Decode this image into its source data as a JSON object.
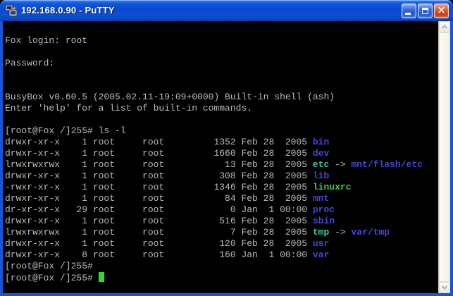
{
  "window": {
    "title": "192.168.0.90 - PuTTY",
    "icon": "putty-terminals-icon",
    "controls": {
      "minimize_label": "Minimize",
      "maximize_label": "Maximize",
      "close_label": "Close",
      "close_glyph": "×"
    }
  },
  "terminal": {
    "colors": {
      "background": "#000000",
      "foreground": "#bbbbbb",
      "directory": "#4545dc",
      "symlink": "#4cc3a5",
      "executable": "#3fcc3f",
      "cursor": "#33d933"
    },
    "lines": [
      [],
      [
        {
          "t": "Fox login: root",
          "c": "fg"
        }
      ],
      [],
      [
        {
          "t": "Password:",
          "c": "fg"
        }
      ],
      [],
      [],
      [
        {
          "t": "BusyBox v0.60.5 (2005.02.11-19:09+0000) Built-in shell (ash)",
          "c": "fg"
        }
      ],
      [
        {
          "t": "Enter 'help' for a list of built-in commands.",
          "c": "fg"
        }
      ],
      [],
      [
        {
          "t": "[root@Fox /]255# ls -l",
          "c": "fg"
        }
      ],
      [
        {
          "t": "drwxr-xr-x    1 root     root         1352 Feb 28  2005 ",
          "c": "fg"
        },
        {
          "t": "bin",
          "c": "dir"
        }
      ],
      [
        {
          "t": "drwxr-xr-x    1 root     root         1660 Feb 28  2005 ",
          "c": "fg"
        },
        {
          "t": "dev",
          "c": "dir"
        }
      ],
      [
        {
          "t": "lrwxrwxrwx    1 root     root           13 Feb 28  2005 ",
          "c": "fg"
        },
        {
          "t": "etc",
          "c": "link"
        },
        {
          "t": " -> ",
          "c": "fg"
        },
        {
          "t": "mnt/flash/etc",
          "c": "dir"
        }
      ],
      [
        {
          "t": "drwxr-xr-x    1 root     root          308 Feb 28  2005 ",
          "c": "fg"
        },
        {
          "t": "lib",
          "c": "dir"
        }
      ],
      [
        {
          "t": "-rwxr-xr-x    1 root     root         1346 Feb 28  2005 ",
          "c": "fg"
        },
        {
          "t": "linuxrc",
          "c": "exec"
        }
      ],
      [
        {
          "t": "drwxr-xr-x    1 root     root           84 Feb 28  2005 ",
          "c": "fg"
        },
        {
          "t": "mnt",
          "c": "dir"
        }
      ],
      [
        {
          "t": "dr-xr-xr-x   29 root     root            0 Jan  1 00:00 ",
          "c": "fg"
        },
        {
          "t": "proc",
          "c": "dir"
        }
      ],
      [
        {
          "t": "drwxr-xr-x    1 root     root          516 Feb 28  2005 ",
          "c": "fg"
        },
        {
          "t": "sbin",
          "c": "dir"
        }
      ],
      [
        {
          "t": "lrwxrwxrwx    1 root     root            7 Feb 28  2005 ",
          "c": "fg"
        },
        {
          "t": "tmp",
          "c": "link"
        },
        {
          "t": " -> ",
          "c": "fg"
        },
        {
          "t": "var/tmp",
          "c": "dir"
        }
      ],
      [
        {
          "t": "drwxr-xr-x    1 root     root          120 Feb 28  2005 ",
          "c": "fg"
        },
        {
          "t": "usr",
          "c": "dir"
        }
      ],
      [
        {
          "t": "drwxr-xr-x    8 root     root          160 Jan  1 00:00 ",
          "c": "fg"
        },
        {
          "t": "var",
          "c": "dir"
        }
      ],
      [
        {
          "t": "[root@Fox /]255#",
          "c": "fg"
        }
      ],
      [
        {
          "t": "[root@Fox /]255# ",
          "c": "fg"
        },
        {
          "c": "cursor"
        }
      ]
    ]
  },
  "scrollbar": {
    "up_icon": "chevron-up-icon",
    "down_icon": "chevron-down-icon"
  }
}
